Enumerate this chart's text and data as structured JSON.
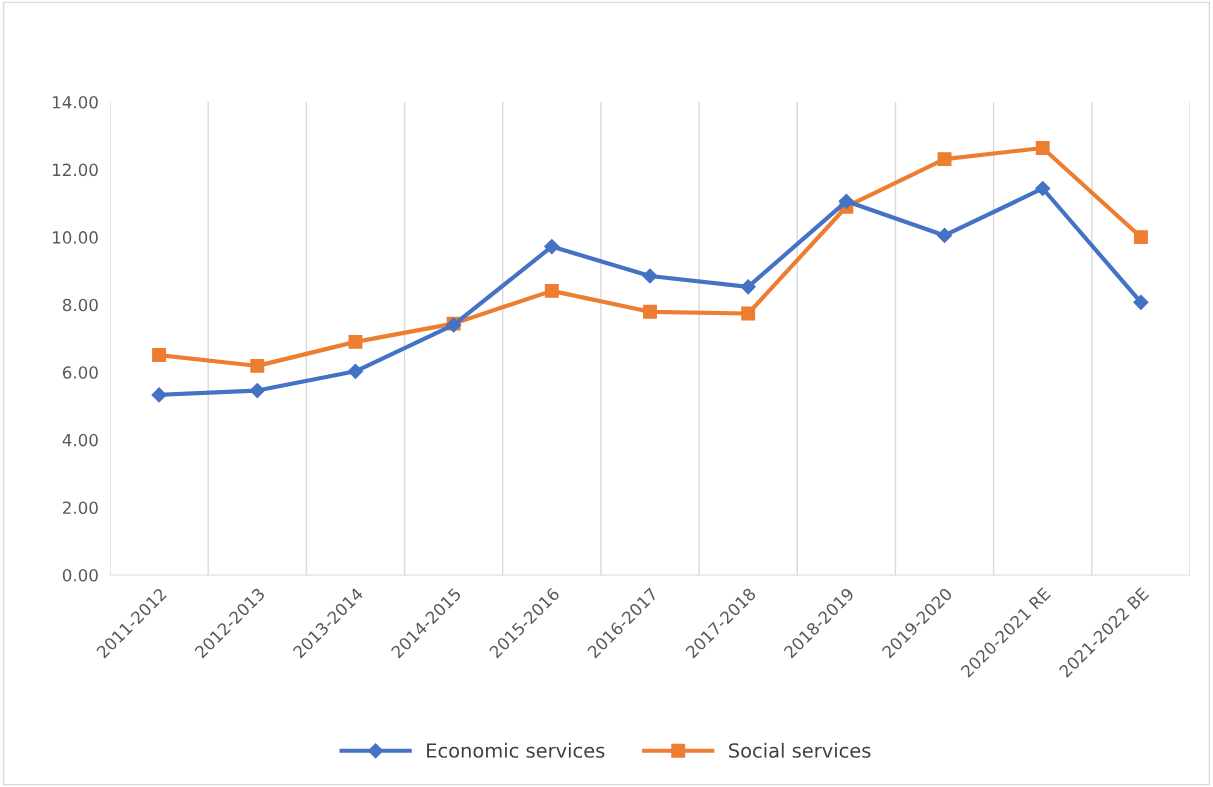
{
  "chart_data": {
    "type": "line",
    "categories": [
      "2011-2012",
      "2012-2013",
      "2013-2014",
      "2014-2015",
      "2015-2016",
      "2016-2017",
      "2017-2018",
      "2018-2019",
      "2019-2020",
      "2020-2021 RE",
      "2021-2022 BE"
    ],
    "series": [
      {
        "name": "Economic services",
        "color": "#4472c4",
        "marker": "diamond",
        "values": [
          5.33,
          5.46,
          6.03,
          7.4,
          9.72,
          8.85,
          8.53,
          11.06,
          10.05,
          11.44,
          8.07
        ]
      },
      {
        "name": "Social services",
        "color": "#ed7d31",
        "marker": "square",
        "values": [
          6.51,
          6.19,
          6.9,
          7.44,
          8.41,
          7.79,
          7.74,
          10.9,
          12.31,
          12.64,
          10.0
        ]
      }
    ],
    "ylim": [
      0,
      14
    ],
    "yticks": [
      {
        "value": 0,
        "label": "0.00"
      },
      {
        "value": 2,
        "label": "2.00"
      },
      {
        "value": 4,
        "label": "4.00"
      },
      {
        "value": 6,
        "label": "6.00"
      },
      {
        "value": 8,
        "label": "8.00"
      },
      {
        "value": 10,
        "label": "10.00"
      },
      {
        "value": 12,
        "label": "12.00"
      },
      {
        "value": 14,
        "label": "14.00"
      }
    ],
    "grid": "x",
    "legend": "bottom",
    "line_style": "solid"
  }
}
